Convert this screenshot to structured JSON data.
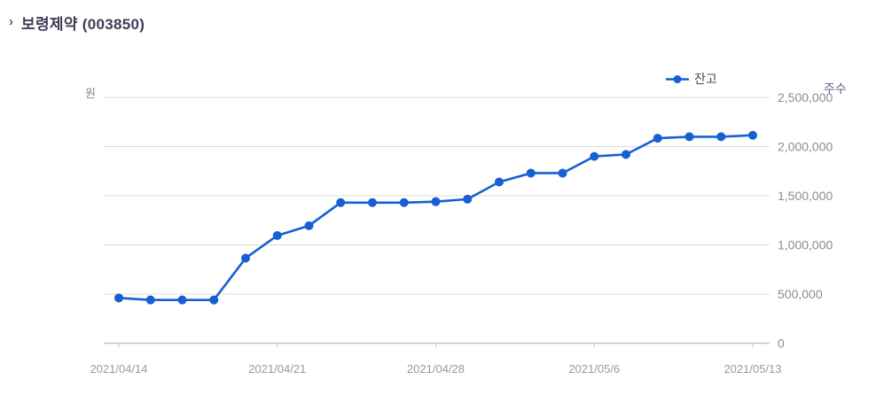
{
  "header": {
    "bullet": "›",
    "title": "보령제약 (003850)"
  },
  "legend": {
    "series_label": "잔고"
  },
  "axes": {
    "left_unit": "원",
    "right_unit": "주수"
  },
  "chart_data": {
    "type": "line",
    "title": "보령제약 (003850) 잔고",
    "legend_position": "top-right",
    "grid": true,
    "ylim": [
      0,
      2500000
    ],
    "num_points": 21,
    "series": [
      {
        "name": "잔고",
        "marker": "circle",
        "values": [
          460000,
          440000,
          440000,
          440000,
          865000,
          1095000,
          1195000,
          1430000,
          1430000,
          1430000,
          1440000,
          1465000,
          1640000,
          1730000,
          1730000,
          1900000,
          1920000,
          2085000,
          2100000,
          2100000,
          2115000
        ]
      }
    ],
    "x_ticks": [
      {
        "index": 0,
        "label": "2021/04/14"
      },
      {
        "index": 5,
        "label": "2021/04/21"
      },
      {
        "index": 10,
        "label": "2021/04/28"
      },
      {
        "index": 15,
        "label": "2021/05/6"
      },
      {
        "index": 20,
        "label": "2021/05/13"
      }
    ],
    "y_ticks": [
      {
        "value": 0,
        "label": "0"
      },
      {
        "value": 500000,
        "label": "500,000"
      },
      {
        "value": 1000000,
        "label": "1,000,000"
      },
      {
        "value": 1500000,
        "label": "1,500,000"
      },
      {
        "value": 2000000,
        "label": "2,000,000"
      },
      {
        "value": 2500000,
        "label": "2,500,000"
      }
    ],
    "colors": {
      "line": "#1560d2",
      "grid": "#dcdcdc",
      "axis": "#b9c8d6",
      "tick": "#c9c9c9",
      "tick_text": "#8c8c8c",
      "x_tick_text": "#9a9a9a"
    }
  }
}
